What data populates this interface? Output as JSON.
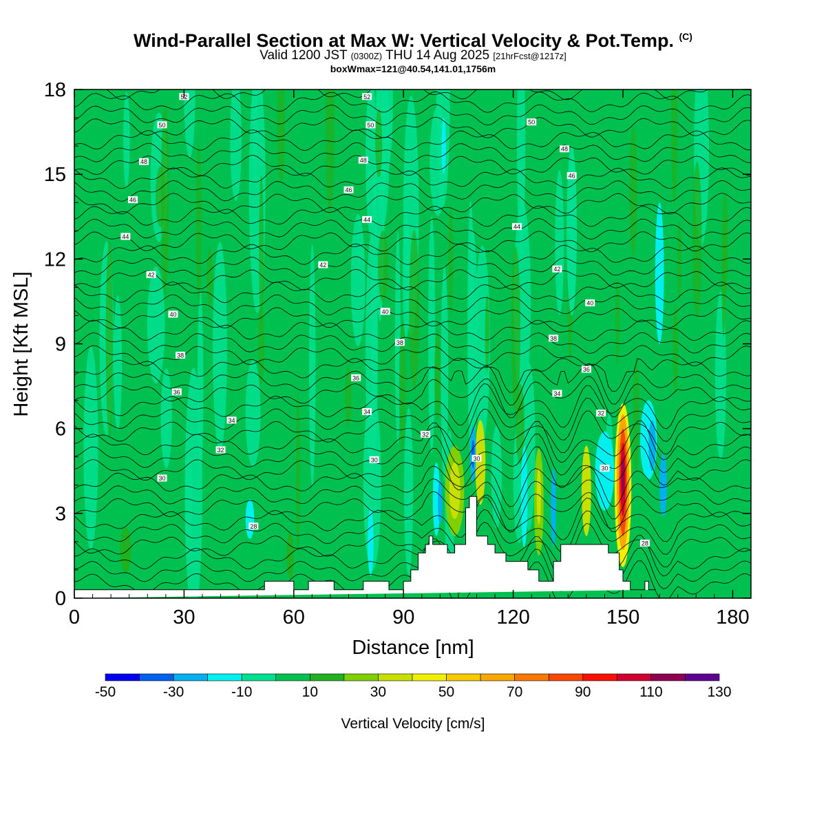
{
  "header": {
    "title": "Wind-Parallel Section at Max W: Vertical Velocity & Pot.Temp.",
    "title_suffix": "(C)",
    "valid_prefix": "Valid 1200 JST",
    "valid_utc": "(0300Z)",
    "valid_date": "THU 14 Aug 2025",
    "forecast": "[21hrFcst@1217z]",
    "box_info": "boxWmax=121@40.54,141.01,1756m"
  },
  "chart_data": {
    "type": "heatmap",
    "xlabel": "Distance [nm]",
    "ylabel": "Height [Kft MSL]",
    "xlim": [
      0,
      185
    ],
    "ylim": [
      0,
      18
    ],
    "xticks": [
      0,
      30,
      60,
      90,
      120,
      150,
      180
    ],
    "yticks": [
      0,
      3,
      6,
      9,
      12,
      15,
      18
    ],
    "colorbar": {
      "label": "Vertical Velocity [cm/s]",
      "tick_labels": [
        "-50",
        "-30",
        "-10",
        "10",
        "30",
        "50",
        "70",
        "90",
        "110",
        "130"
      ],
      "bins": [
        {
          "from": -50,
          "to": -40,
          "color": "#0000ee"
        },
        {
          "from": -40,
          "to": -30,
          "color": "#0060ee"
        },
        {
          "from": -30,
          "to": -20,
          "color": "#00b0f0"
        },
        {
          "from": -20,
          "to": -10,
          "color": "#00f0f0"
        },
        {
          "from": -10,
          "to": 0,
          "color": "#00e090"
        },
        {
          "from": 0,
          "to": 10,
          "color": "#00c050"
        },
        {
          "from": 10,
          "to": 20,
          "color": "#20b020"
        },
        {
          "from": 20,
          "to": 30,
          "color": "#80d000"
        },
        {
          "from": 30,
          "to": 40,
          "color": "#c8e000"
        },
        {
          "from": 40,
          "to": 50,
          "color": "#f0f000"
        },
        {
          "from": 50,
          "to": 60,
          "color": "#f8c800"
        },
        {
          "from": 60,
          "to": 70,
          "color": "#f8a800"
        },
        {
          "from": 70,
          "to": 80,
          "color": "#f87800"
        },
        {
          "from": 80,
          "to": 90,
          "color": "#f84800"
        },
        {
          "from": 90,
          "to": 100,
          "color": "#f81000"
        },
        {
          "from": 100,
          "to": 110,
          "color": "#d00030"
        },
        {
          "from": 110,
          "to": 120,
          "color": "#900050"
        },
        {
          "from": 120,
          "to": 130,
          "color": "#600090"
        }
      ]
    },
    "terrain": {
      "x": [
        0,
        52,
        52,
        60,
        60,
        64,
        64,
        71,
        71,
        79,
        79,
        86,
        86,
        90,
        90,
        92,
        92,
        94,
        94,
        96,
        96,
        97,
        97,
        98,
        98,
        102,
        102,
        104,
        104,
        107,
        107,
        108,
        108,
        110,
        110,
        113,
        113,
        115,
        115,
        118,
        118,
        124,
        124,
        127,
        127,
        131,
        131,
        133,
        133,
        136,
        136,
        146,
        146,
        149,
        149,
        150,
        150,
        152,
        152,
        156,
        156,
        157,
        157,
        159,
        159,
        185
      ],
      "y": [
        0.3,
        0.3,
        0.6,
        0.6,
        0.3,
        0.3,
        0.6,
        0.6,
        0.3,
        0.3,
        0.6,
        0.6,
        0.3,
        0.3,
        0.6,
        0.6,
        1.0,
        1.0,
        1.6,
        1.6,
        1.9,
        1.9,
        2.2,
        2.2,
        1.9,
        1.9,
        1.6,
        1.6,
        1.9,
        1.9,
        3.2,
        3.2,
        3.6,
        3.6,
        2.2,
        2.2,
        1.9,
        1.9,
        1.6,
        1.6,
        1.3,
        1.3,
        1.0,
        1.0,
        0.6,
        0.6,
        1.3,
        1.3,
        1.9,
        1.9,
        1.9,
        1.9,
        1.6,
        1.6,
        1.0,
        1.0,
        0.6,
        0.6,
        0.3,
        0.3,
        0.6,
        0.6,
        0.3,
        0.3,
        0.3
      ]
    },
    "isentropes": {
      "levels": [
        26,
        28,
        30,
        32,
        34,
        36,
        38,
        40,
        42,
        44,
        46,
        48,
        50,
        52
      ],
      "labels": [
        {
          "text": "52",
          "x": 30,
          "y": 17.75
        },
        {
          "text": "52",
          "x": 80,
          "y": 17.75
        },
        {
          "text": "50",
          "x": 24,
          "y": 16.75
        },
        {
          "text": "50",
          "x": 81,
          "y": 16.75
        },
        {
          "text": "50",
          "x": 125,
          "y": 16.85
        },
        {
          "text": "48",
          "x": 19,
          "y": 15.45
        },
        {
          "text": "48",
          "x": 79,
          "y": 15.5
        },
        {
          "text": "48",
          "x": 134,
          "y": 15.9
        },
        {
          "text": "46",
          "x": 16,
          "y": 14.1
        },
        {
          "text": "46",
          "x": 75,
          "y": 14.45
        },
        {
          "text": "46",
          "x": 136,
          "y": 14.95
        },
        {
          "text": "44",
          "x": 14,
          "y": 12.8
        },
        {
          "text": "44",
          "x": 80,
          "y": 13.4
        },
        {
          "text": "44",
          "x": 121,
          "y": 13.15
        },
        {
          "text": "42",
          "x": 21,
          "y": 11.45
        },
        {
          "text": "42",
          "x": 68,
          "y": 11.8
        },
        {
          "text": "42",
          "x": 132,
          "y": 11.65
        },
        {
          "text": "40",
          "x": 27,
          "y": 10.05
        },
        {
          "text": "40",
          "x": 85,
          "y": 10.15
        },
        {
          "text": "40",
          "x": 141,
          "y": 10.45
        },
        {
          "text": "38",
          "x": 29,
          "y": 8.6
        },
        {
          "text": "38",
          "x": 89,
          "y": 9.05
        },
        {
          "text": "38",
          "x": 131,
          "y": 9.2
        },
        {
          "text": "36",
          "x": 28,
          "y": 7.3
        },
        {
          "text": "36",
          "x": 77,
          "y": 7.8
        },
        {
          "text": "36",
          "x": 140,
          "y": 8.1
        },
        {
          "text": "34",
          "x": 43,
          "y": 6.3
        },
        {
          "text": "34",
          "x": 80,
          "y": 6.6
        },
        {
          "text": "34",
          "x": 132,
          "y": 7.25
        },
        {
          "text": "32",
          "x": 40,
          "y": 5.25
        },
        {
          "text": "32",
          "x": 96,
          "y": 5.8
        },
        {
          "text": "32",
          "x": 144,
          "y": 6.55
        },
        {
          "text": "30",
          "x": 24,
          "y": 4.25
        },
        {
          "text": "30",
          "x": 82,
          "y": 4.9
        },
        {
          "text": "30",
          "x": 110,
          "y": 4.95
        },
        {
          "text": "30",
          "x": 145,
          "y": 4.6
        },
        {
          "text": "28",
          "x": 49,
          "y": 2.55
        },
        {
          "text": "28",
          "x": 156,
          "y": 1.95
        }
      ]
    },
    "w_features": [
      {
        "x": 104,
        "y": 3.8,
        "rx": 2.6,
        "ry": 1.6,
        "value": 25
      },
      {
        "x": 104,
        "y": 3.8,
        "rx": 1.5,
        "ry": 1.0,
        "value": 35
      },
      {
        "x": 111,
        "y": 4.8,
        "rx": 1.4,
        "ry": 1.5,
        "value": 35
      },
      {
        "x": 99,
        "y": 3.5,
        "rx": 1.0,
        "ry": 1.3,
        "value": -15
      },
      {
        "x": 100,
        "y": 3.4,
        "rx": 0.6,
        "ry": 0.8,
        "value": -25
      },
      {
        "x": 109,
        "y": 5.1,
        "rx": 0.8,
        "ry": 1.0,
        "value": -25
      },
      {
        "x": 109,
        "y": 5.1,
        "rx": 0.4,
        "ry": 0.5,
        "value": -35
      },
      {
        "x": 123,
        "y": 3.6,
        "rx": 0.9,
        "ry": 1.8,
        "value": -15
      },
      {
        "x": 127,
        "y": 3.4,
        "rx": 1.3,
        "ry": 1.9,
        "value": 25
      },
      {
        "x": 127,
        "y": 3.6,
        "rx": 0.6,
        "ry": 1.0,
        "value": 35
      },
      {
        "x": 131,
        "y": 3.2,
        "rx": 0.7,
        "ry": 1.4,
        "value": -25
      },
      {
        "x": 140,
        "y": 3.8,
        "rx": 1.3,
        "ry": 1.6,
        "value": 30
      },
      {
        "x": 145,
        "y": 4.5,
        "rx": 2.6,
        "ry": 1.4,
        "value": -15
      },
      {
        "x": 150,
        "y": 4.0,
        "rx": 2.3,
        "ry": 2.9,
        "value": 45
      },
      {
        "x": 150,
        "y": 4.1,
        "rx": 1.7,
        "ry": 2.4,
        "value": 65
      },
      {
        "x": 150,
        "y": 4.1,
        "rx": 1.1,
        "ry": 1.9,
        "value": 85
      },
      {
        "x": 150,
        "y": 4.2,
        "rx": 0.7,
        "ry": 1.3,
        "value": 105
      },
      {
        "x": 150,
        "y": 4.3,
        "rx": 0.35,
        "ry": 0.7,
        "value": 115
      },
      {
        "x": 157,
        "y": 5.6,
        "rx": 2.3,
        "ry": 1.4,
        "value": -15
      },
      {
        "x": 158,
        "y": 5.4,
        "rx": 1.0,
        "ry": 0.9,
        "value": -25
      },
      {
        "x": 161,
        "y": 4.0,
        "rx": 1.0,
        "ry": 1.1,
        "value": -25
      },
      {
        "x": 136,
        "y": 13.0,
        "rx": 1.4,
        "ry": 3.0,
        "value": -5
      },
      {
        "x": 160,
        "y": 11.5,
        "rx": 1.2,
        "ry": 2.5,
        "value": -15
      },
      {
        "x": 101,
        "y": 16.0,
        "rx": 0.6,
        "ry": 1.0,
        "value": -15
      },
      {
        "x": 48,
        "y": 2.8,
        "rx": 1.2,
        "ry": 0.7,
        "value": -15
      },
      {
        "x": 59,
        "y": 1.5,
        "rx": 1.0,
        "ry": 0.8,
        "value": 15
      },
      {
        "x": 81,
        "y": 2.0,
        "rx": 0.8,
        "ry": 1.2,
        "value": -15
      },
      {
        "x": 14,
        "y": 1.7,
        "rx": 1.5,
        "ry": 0.8,
        "value": 15
      }
    ]
  }
}
